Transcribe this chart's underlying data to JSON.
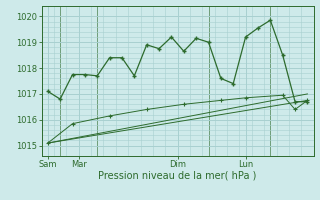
{
  "background_color": "#ceeaea",
  "grid_color": "#a8d0d0",
  "line_color": "#2d6b2d",
  "title": "Pression niveau de la mer( hPa )",
  "ylabel_ticks": [
    1015,
    1016,
    1017,
    1018,
    1019,
    1020
  ],
  "ylim": [
    1014.6,
    1020.4
  ],
  "xlim": [
    -0.5,
    21.5
  ],
  "day_labels": [
    "Sam",
    "Mar",
    "Dim",
    "Lun"
  ],
  "day_positions": [
    0.5,
    3.0,
    11.0,
    16.5
  ],
  "day_vlines": [
    1.5,
    4.5,
    13.5,
    18.5
  ],
  "series1_x": [
    0,
    1,
    2,
    3,
    4,
    5,
    6,
    7,
    8,
    9,
    10,
    11,
    12,
    13,
    14,
    15,
    16,
    17,
    18,
    19,
    20,
    21
  ],
  "series1_y": [
    1017.1,
    1016.8,
    1017.75,
    1017.75,
    1017.7,
    1018.4,
    1018.4,
    1017.7,
    1018.9,
    1018.75,
    1019.2,
    1018.65,
    1019.15,
    1019.0,
    1017.6,
    1017.4,
    1019.2,
    1019.55,
    1019.85,
    1018.5,
    1016.7,
    1016.7
  ],
  "series2_x": [
    0,
    2,
    5,
    8,
    11,
    14,
    16,
    19,
    20,
    21
  ],
  "series2_y": [
    1015.1,
    1015.85,
    1016.15,
    1016.4,
    1016.6,
    1016.75,
    1016.85,
    1016.95,
    1016.4,
    1016.75
  ],
  "series3_x": [
    0,
    21
  ],
  "series3_y": [
    1015.1,
    1017.0
  ],
  "series4_x": [
    0,
    21
  ],
  "series4_y": [
    1015.1,
    1016.75
  ]
}
